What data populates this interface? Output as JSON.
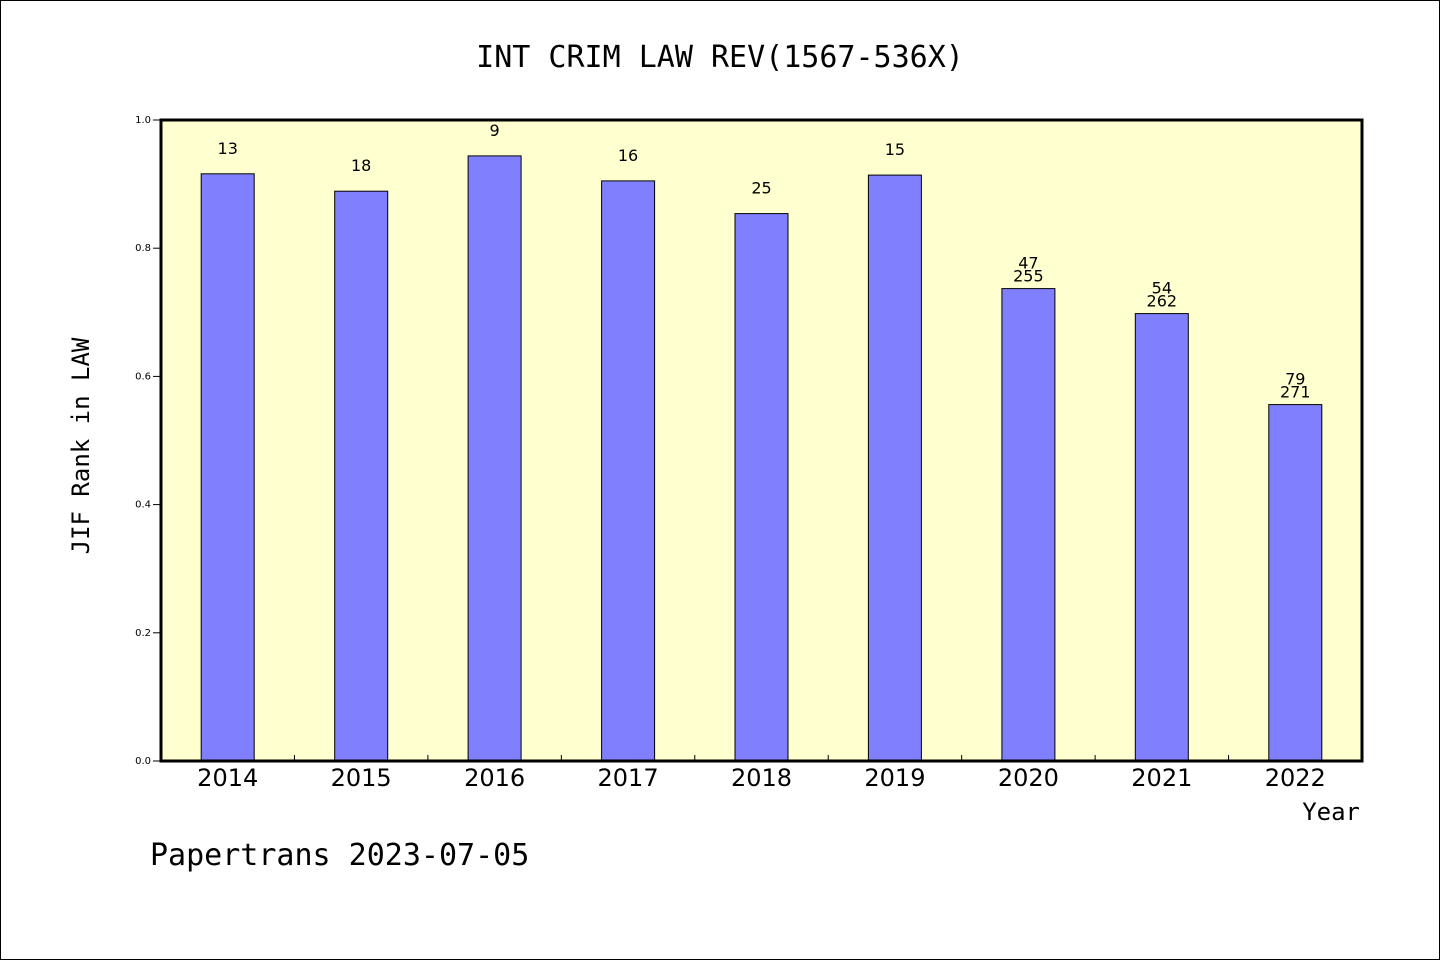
{
  "chart_data": {
    "type": "bar",
    "title": "INT CRIM LAW REV(1567-536X)",
    "xlabel": "Year",
    "ylabel": "JIF Rank in LAW",
    "ylim": [
      0,
      1.0
    ],
    "yticks": [
      "0.0",
      "0.2",
      "0.4",
      "0.6",
      "0.8",
      "1.0"
    ],
    "categories": [
      "2014",
      "2015",
      "2016",
      "2017",
      "2018",
      "2019",
      "2020",
      "2021",
      "2022"
    ],
    "values": [
      0.916,
      0.889,
      0.944,
      0.905,
      0.854,
      0.914,
      0.737,
      0.698,
      0.556
    ],
    "rank_labels": [
      "13",
      "18",
      "9",
      "16",
      "25",
      "15",
      "47",
      "54",
      "79"
    ],
    "total_labels": [
      "",
      "",
      "",
      "",
      "",
      "",
      "255",
      "262",
      "271"
    ],
    "grid": false,
    "colors": {
      "bar": "#8080ff",
      "plot_bg": "#ffffd0",
      "bar_edge": "#000000"
    }
  },
  "footer": "Papertrans 2023-07-05"
}
